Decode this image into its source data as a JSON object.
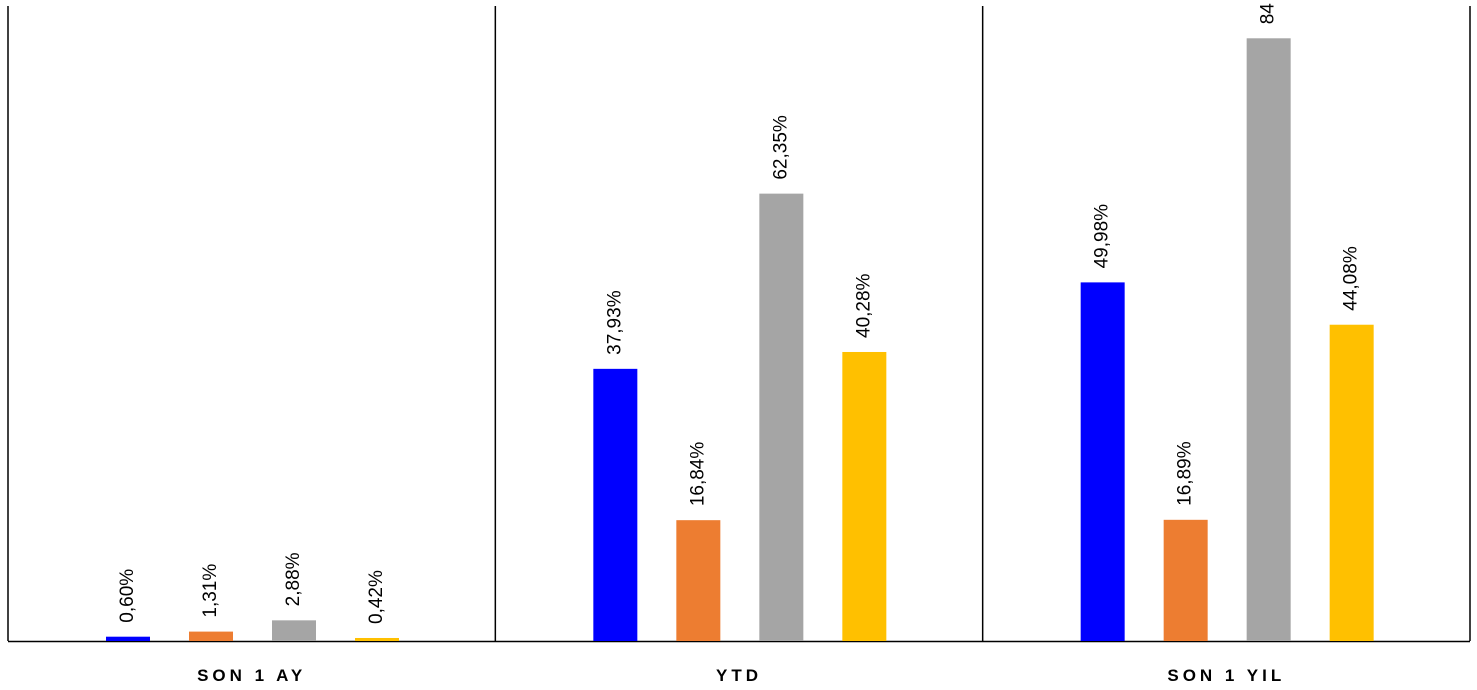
{
  "chart_data": {
    "type": "bar",
    "categories": [
      "SON 1 AY",
      "YTD",
      "SON 1 YIL"
    ],
    "series": [
      {
        "color": "#0000ff",
        "values": [
          0.6,
          37.93,
          49.98
        ],
        "labels": [
          "0,60%",
          "37,93%",
          "49,98%"
        ]
      },
      {
        "color": "#ed7d31",
        "values": [
          1.31,
          16.84,
          16.89
        ],
        "labels": [
          "1,31%",
          "16,84%",
          "16,89%"
        ]
      },
      {
        "color": "#a5a5a5",
        "values": [
          2.88,
          62.35,
          84.0
        ],
        "labels": [
          "2,88%",
          "62,35%",
          "84"
        ]
      },
      {
        "color": "#ffc000",
        "values": [
          0.42,
          40.28,
          44.08
        ],
        "labels": [
          "0,42%",
          "40,28%",
          "44,08%"
        ]
      }
    ],
    "title": "",
    "xlabel": "",
    "ylabel": "",
    "ylim": [
      0,
      88.5
    ],
    "grid": false,
    "legend": "none"
  }
}
